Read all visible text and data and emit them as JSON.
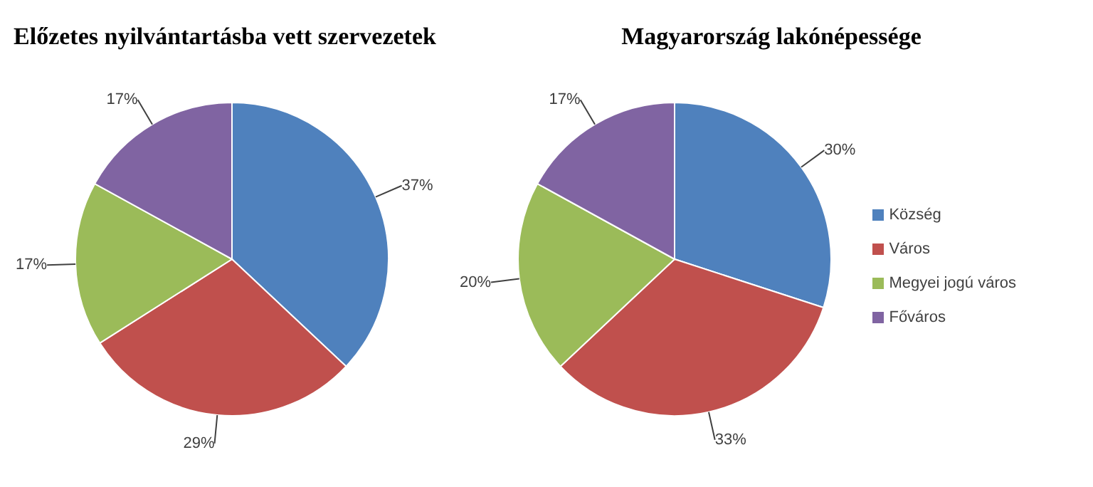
{
  "chart_data": [
    {
      "type": "pie",
      "title": "Előzetes nyilvántartásba vett szervezetek",
      "categories": [
        null,
        null,
        null,
        null
      ],
      "values": [
        37,
        29,
        17,
        17
      ],
      "value_labels": [
        "37%",
        "29%",
        "17%",
        "17%"
      ],
      "colors": [
        "#4f81bd",
        "#c0504d",
        "#9bbb59",
        "#8064a2"
      ],
      "legend": false
    },
    {
      "type": "pie",
      "title": "Magyarország lakónépessége",
      "categories": [
        "Község",
        "Város",
        "Megyei jogú város",
        "Főváros"
      ],
      "values": [
        30,
        33,
        20,
        17
      ],
      "value_labels": [
        "30%",
        "33%",
        "20%",
        "17%"
      ],
      "colors": [
        "#4f81bd",
        "#c0504d",
        "#9bbb59",
        "#8064a2"
      ],
      "legend": "right"
    }
  ]
}
